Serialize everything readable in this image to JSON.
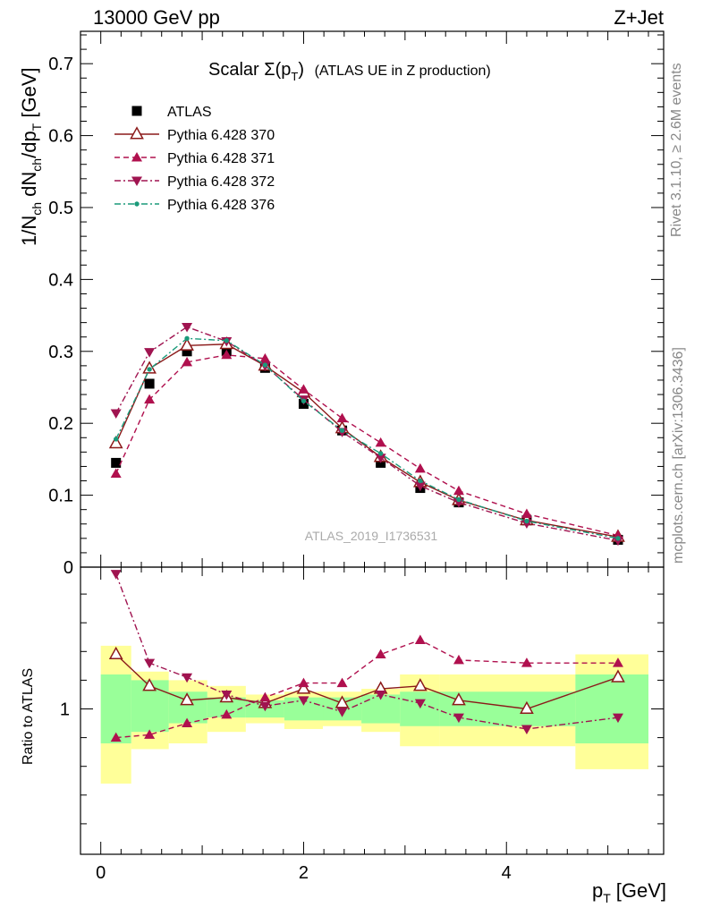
{
  "header": {
    "left": "13000 GeV pp",
    "right": "Z+Jet"
  },
  "side_text": {
    "rivet": "Rivet 3.1.10, ≥ 2.6M events",
    "mcplots": "mcplots.cern.ch [arXiv:1306.3436]"
  },
  "chart_data": {
    "type": "line",
    "title_main": "Scalar Σ(p",
    "title_sub": "T",
    "title_close": ")",
    "title_rest": "(ATLAS UE in Z production)",
    "watermark": "ATLAS_2019_I1736531",
    "xlabel": "p",
    "xlabel_sub": "T",
    "xlabel_unit": "[GeV]",
    "ylabel": "1/N",
    "ylabel_full": "1/N_ch dN_ch/dp_T [GeV]",
    "ratio_ylabel": "Ratio to ATLAS",
    "xlim": [
      -0.2,
      5.55
    ],
    "ylim": [
      0,
      0.745
    ],
    "ratio_ylim": [
      0.5,
      1.5
    ],
    "x_ticks": [
      "0",
      "2",
      "4"
    ],
    "y_ticks": [
      "0",
      "0.1",
      "0.2",
      "0.3",
      "0.4",
      "0.5",
      "0.6",
      "0.7"
    ],
    "ratio_y_ticks": [
      "1"
    ],
    "legend_position": "top-left",
    "x": [
      0.15,
      0.48,
      0.85,
      1.24,
      1.62,
      2.0,
      2.38,
      2.76,
      3.15,
      3.53,
      4.2,
      5.1
    ],
    "series": [
      {
        "name": "ATLAS",
        "color": "#000000",
        "marker": "square",
        "dash": "none",
        "values": [
          0.145,
          0.255,
          0.3,
          0.3,
          0.277,
          0.227,
          0.19,
          0.145,
          0.11,
          0.09,
          0.065,
          0.038
        ]
      },
      {
        "name": "Pythia 6.428 370",
        "color": "#8b1a1a",
        "marker": "triangle-open",
        "dash": "solid",
        "values": [
          0.172,
          0.276,
          0.308,
          0.31,
          0.28,
          0.243,
          0.193,
          0.153,
          0.118,
          0.093,
          0.065,
          0.042
        ],
        "ratio": [
          1.19,
          1.08,
          1.03,
          1.04,
          1.02,
          1.07,
          1.02,
          1.07,
          1.08,
          1.03,
          1.0,
          1.11
        ]
      },
      {
        "name": "Pythia 6.428 371",
        "color": "#b0104e",
        "marker": "triangle-up",
        "dash": "dashed",
        "values": [
          0.13,
          0.233,
          0.285,
          0.295,
          0.29,
          0.247,
          0.207,
          0.173,
          0.137,
          0.106,
          0.074,
          0.044
        ],
        "ratio": [
          0.9,
          0.91,
          0.95,
          0.98,
          1.04,
          1.09,
          1.09,
          1.19,
          1.24,
          1.17,
          1.16,
          1.16
        ]
      },
      {
        "name": "Pythia 6.428 372",
        "color": "#a01450",
        "marker": "triangle-down",
        "dash": "dashdot",
        "values": [
          0.214,
          0.299,
          0.334,
          0.314,
          0.28,
          0.233,
          0.188,
          0.152,
          0.113,
          0.09,
          0.061,
          0.037
        ],
        "ratio": [
          1.47,
          1.16,
          1.11,
          1.05,
          1.01,
          1.03,
          0.99,
          1.05,
          1.02,
          0.97,
          0.93,
          0.97
        ]
      },
      {
        "name": "Pythia 6.428 376",
        "color": "#1a9a7a",
        "marker": "dot",
        "dash": "dashdot",
        "values": [
          0.178,
          0.275,
          0.318,
          0.315,
          0.281,
          0.231,
          0.19,
          0.158,
          0.12,
          0.094,
          0.064,
          0.04
        ]
      }
    ],
    "ratio_bands": {
      "edges": [
        0.0,
        0.3,
        0.67,
        1.05,
        1.43,
        1.81,
        2.19,
        2.57,
        2.95,
        3.34,
        3.72,
        4.68,
        5.4
      ],
      "green": [
        [
          0.88,
          1.12
        ],
        [
          0.92,
          1.1
        ],
        [
          0.95,
          1.06
        ],
        [
          0.97,
          1.04
        ],
        [
          0.97,
          1.03
        ],
        [
          0.96,
          1.04
        ],
        [
          0.96,
          1.04
        ],
        [
          0.95,
          1.05
        ],
        [
          0.94,
          1.06
        ],
        [
          0.94,
          1.06
        ],
        [
          0.94,
          1.06
        ],
        [
          0.88,
          1.12
        ]
      ],
      "yellow": [
        [
          0.74,
          1.22
        ],
        [
          0.86,
          1.13
        ],
        [
          0.88,
          1.1
        ],
        [
          0.92,
          1.08
        ],
        [
          0.95,
          1.05
        ],
        [
          0.93,
          1.06
        ],
        [
          0.94,
          1.06
        ],
        [
          0.92,
          1.07
        ],
        [
          0.87,
          1.12
        ],
        [
          0.87,
          1.12
        ],
        [
          0.87,
          1.12
        ],
        [
          0.79,
          1.19
        ]
      ]
    }
  }
}
